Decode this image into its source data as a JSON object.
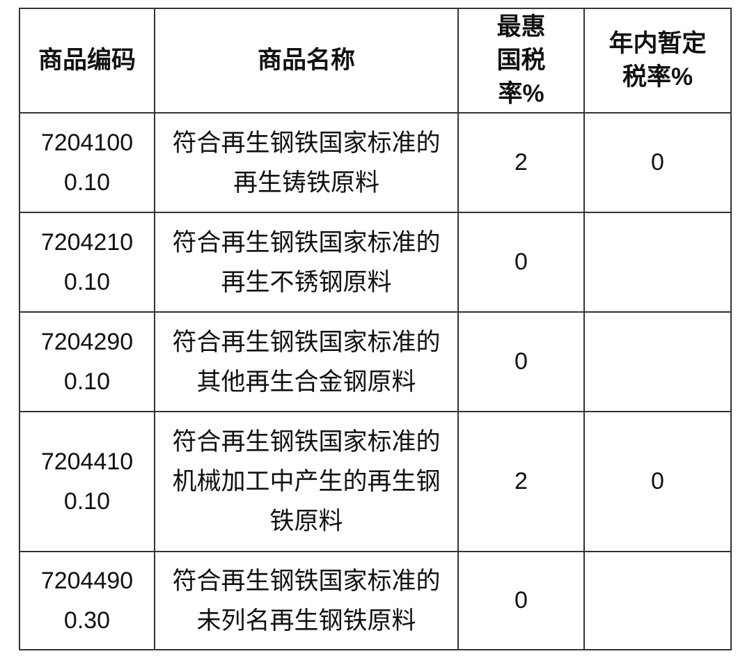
{
  "headers": [
    "商品编码",
    "商品名称",
    "最惠国税率%",
    "年内暂定税率%"
  ],
  "rows": [
    {
      "code": "72041000.10",
      "name": "符合再生钢铁国家标准的再生铸铁原料",
      "mfn": "2",
      "provisional": "0"
    },
    {
      "code": "72042100.10",
      "name": "符合再生钢铁国家标准的再生不锈钢原料",
      "mfn": "0",
      "provisional": ""
    },
    {
      "code": "72042900.10",
      "name": "符合再生钢铁国家标准的其他再生合金钢原料",
      "mfn": "0",
      "provisional": ""
    },
    {
      "code": "72044100.10",
      "name": "符合再生钢铁国家标准的机械加工中产生的再生钢铁原料",
      "mfn": "2",
      "provisional": "0"
    },
    {
      "code": "72044900.30",
      "name": "符合再生钢铁国家标准的未列名再生钢铁原料",
      "mfn": "0",
      "provisional": ""
    }
  ]
}
